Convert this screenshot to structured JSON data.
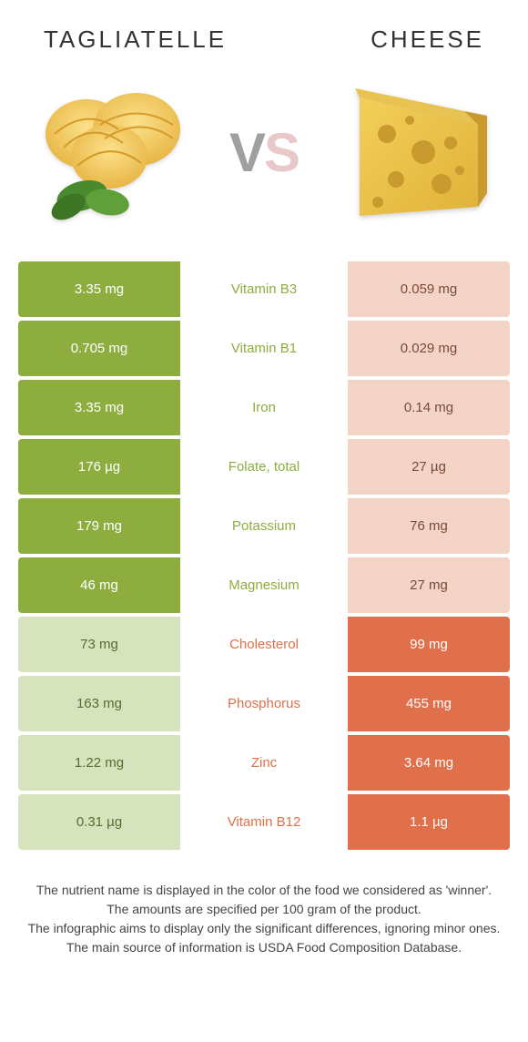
{
  "header": {
    "left": "TAGLIATELLE",
    "right": "CHEESE"
  },
  "vs": {
    "v": "V",
    "s": "S"
  },
  "colors": {
    "green_fill": "#8dad3f",
    "green_text": "#8dad3f",
    "orange_fill": "#e0704b",
    "orange_text": "#e0704b",
    "cell_text_on_fill": "#ffffff",
    "green_light": "#d7e3bc",
    "orange_light": "#f5d4c8"
  },
  "rows": [
    {
      "label": "Vitamin B3",
      "left": "3.35 mg",
      "right": "0.059 mg",
      "winner": "left"
    },
    {
      "label": "Vitamin B1",
      "left": "0.705 mg",
      "right": "0.029 mg",
      "winner": "left"
    },
    {
      "label": "Iron",
      "left": "3.35 mg",
      "right": "0.14 mg",
      "winner": "left"
    },
    {
      "label": "Folate, total",
      "left": "176 µg",
      "right": "27 µg",
      "winner": "left"
    },
    {
      "label": "Potassium",
      "left": "179 mg",
      "right": "76 mg",
      "winner": "left"
    },
    {
      "label": "Magnesium",
      "left": "46 mg",
      "right": "27 mg",
      "winner": "left"
    },
    {
      "label": "Cholesterol",
      "left": "73 mg",
      "right": "99 mg",
      "winner": "right"
    },
    {
      "label": "Phosphorus",
      "left": "163 mg",
      "right": "455 mg",
      "winner": "right"
    },
    {
      "label": "Zinc",
      "left": "1.22 mg",
      "right": "3.64 mg",
      "winner": "right"
    },
    {
      "label": "Vitamin B12",
      "left": "0.31 µg",
      "right": "1.1 µg",
      "winner": "right"
    }
  ],
  "footer": {
    "line1": "The nutrient name is displayed in the color of the food we considered as 'winner'.",
    "line2": "The amounts are specified per 100 gram of the product.",
    "line3": "The infographic aims to display only the significant differences, ignoring minor ones.",
    "line4": "The main source of information is USDA Food Composition Database."
  }
}
